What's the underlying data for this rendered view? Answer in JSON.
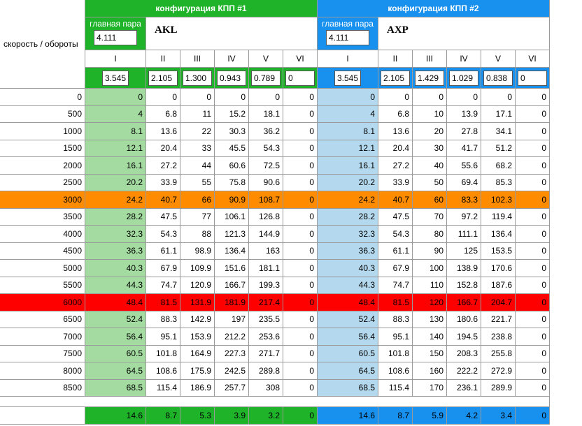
{
  "corner_label": "скорость / обороты",
  "config1": {
    "title": "конфигурация КПП #1",
    "main_pair_label": "главная пара",
    "main_pair_value": "4.111",
    "model": "AKL",
    "gears": [
      "I",
      "II",
      "III",
      "IV",
      "V",
      "VI"
    ],
    "ratios": [
      "3.545",
      "2.105",
      "1.300",
      "0.943",
      "0.789",
      "0"
    ],
    "footer": [
      "14.6",
      "8.7",
      "5.3",
      "3.9",
      "3.2",
      "0"
    ]
  },
  "config2": {
    "title": "конфигурация КПП #2",
    "main_pair_label": "главная пара",
    "main_pair_value": "4.111",
    "model": "AXP",
    "gears": [
      "I",
      "II",
      "III",
      "IV",
      "V",
      "VI"
    ],
    "ratios": [
      "3.545",
      "2.105",
      "1.429",
      "1.029",
      "0.838",
      "0"
    ],
    "footer": [
      "14.6",
      "8.7",
      "5.9",
      "4.2",
      "3.4",
      "0"
    ]
  },
  "highlight_rows": {
    "3000": "orange",
    "6000": "red"
  },
  "colors": {
    "green_header": "#1fb32a",
    "blue_header": "#1790ee",
    "green_col": "#a3dba0",
    "blue_col": "#b4d9ee",
    "orange": "#ff8c00",
    "red": "#ff0000"
  },
  "rows": [
    {
      "rpm": "0",
      "c1": [
        "0",
        "0",
        "0",
        "0",
        "0",
        "0"
      ],
      "c2": [
        "0",
        "0",
        "0",
        "0",
        "0",
        "0"
      ]
    },
    {
      "rpm": "500",
      "c1": [
        "4",
        "6.8",
        "11",
        "15.2",
        "18.1",
        "0"
      ],
      "c2": [
        "4",
        "6.8",
        "10",
        "13.9",
        "17.1",
        "0"
      ]
    },
    {
      "rpm": "1000",
      "c1": [
        "8.1",
        "13.6",
        "22",
        "30.3",
        "36.2",
        "0"
      ],
      "c2": [
        "8.1",
        "13.6",
        "20",
        "27.8",
        "34.1",
        "0"
      ]
    },
    {
      "rpm": "1500",
      "c1": [
        "12.1",
        "20.4",
        "33",
        "45.5",
        "54.3",
        "0"
      ],
      "c2": [
        "12.1",
        "20.4",
        "30",
        "41.7",
        "51.2",
        "0"
      ]
    },
    {
      "rpm": "2000",
      "c1": [
        "16.1",
        "27.2",
        "44",
        "60.6",
        "72.5",
        "0"
      ],
      "c2": [
        "16.1",
        "27.2",
        "40",
        "55.6",
        "68.2",
        "0"
      ]
    },
    {
      "rpm": "2500",
      "c1": [
        "20.2",
        "33.9",
        "55",
        "75.8",
        "90.6",
        "0"
      ],
      "c2": [
        "20.2",
        "33.9",
        "50",
        "69.4",
        "85.3",
        "0"
      ]
    },
    {
      "rpm": "3000",
      "c1": [
        "24.2",
        "40.7",
        "66",
        "90.9",
        "108.7",
        "0"
      ],
      "c2": [
        "24.2",
        "40.7",
        "60",
        "83.3",
        "102.3",
        "0"
      ]
    },
    {
      "rpm": "3500",
      "c1": [
        "28.2",
        "47.5",
        "77",
        "106.1",
        "126.8",
        "0"
      ],
      "c2": [
        "28.2",
        "47.5",
        "70",
        "97.2",
        "119.4",
        "0"
      ]
    },
    {
      "rpm": "4000",
      "c1": [
        "32.3",
        "54.3",
        "88",
        "121.3",
        "144.9",
        "0"
      ],
      "c2": [
        "32.3",
        "54.3",
        "80",
        "111.1",
        "136.4",
        "0"
      ]
    },
    {
      "rpm": "4500",
      "c1": [
        "36.3",
        "61.1",
        "98.9",
        "136.4",
        "163",
        "0"
      ],
      "c2": [
        "36.3",
        "61.1",
        "90",
        "125",
        "153.5",
        "0"
      ]
    },
    {
      "rpm": "5000",
      "c1": [
        "40.3",
        "67.9",
        "109.9",
        "151.6",
        "181.1",
        "0"
      ],
      "c2": [
        "40.3",
        "67.9",
        "100",
        "138.9",
        "170.6",
        "0"
      ]
    },
    {
      "rpm": "5500",
      "c1": [
        "44.3",
        "74.7",
        "120.9",
        "166.7",
        "199.3",
        "0"
      ],
      "c2": [
        "44.3",
        "74.7",
        "110",
        "152.8",
        "187.6",
        "0"
      ]
    },
    {
      "rpm": "6000",
      "c1": [
        "48.4",
        "81.5",
        "131.9",
        "181.9",
        "217.4",
        "0"
      ],
      "c2": [
        "48.4",
        "81.5",
        "120",
        "166.7",
        "204.7",
        "0"
      ]
    },
    {
      "rpm": "6500",
      "c1": [
        "52.4",
        "88.3",
        "142.9",
        "197",
        "235.5",
        "0"
      ],
      "c2": [
        "52.4",
        "88.3",
        "130",
        "180.6",
        "221.7",
        "0"
      ]
    },
    {
      "rpm": "7000",
      "c1": [
        "56.4",
        "95.1",
        "153.9",
        "212.2",
        "253.6",
        "0"
      ],
      "c2": [
        "56.4",
        "95.1",
        "140",
        "194.5",
        "238.8",
        "0"
      ]
    },
    {
      "rpm": "7500",
      "c1": [
        "60.5",
        "101.8",
        "164.9",
        "227.3",
        "271.7",
        "0"
      ],
      "c2": [
        "60.5",
        "101.8",
        "150",
        "208.3",
        "255.8",
        "0"
      ]
    },
    {
      "rpm": "8000",
      "c1": [
        "64.5",
        "108.6",
        "175.9",
        "242.5",
        "289.8",
        "0"
      ],
      "c2": [
        "64.5",
        "108.6",
        "160",
        "222.2",
        "272.9",
        "0"
      ]
    },
    {
      "rpm": "8500",
      "c1": [
        "68.5",
        "115.4",
        "186.9",
        "257.7",
        "308",
        "0"
      ],
      "c2": [
        "68.5",
        "115.4",
        "170",
        "236.1",
        "289.9",
        "0"
      ]
    }
  ]
}
